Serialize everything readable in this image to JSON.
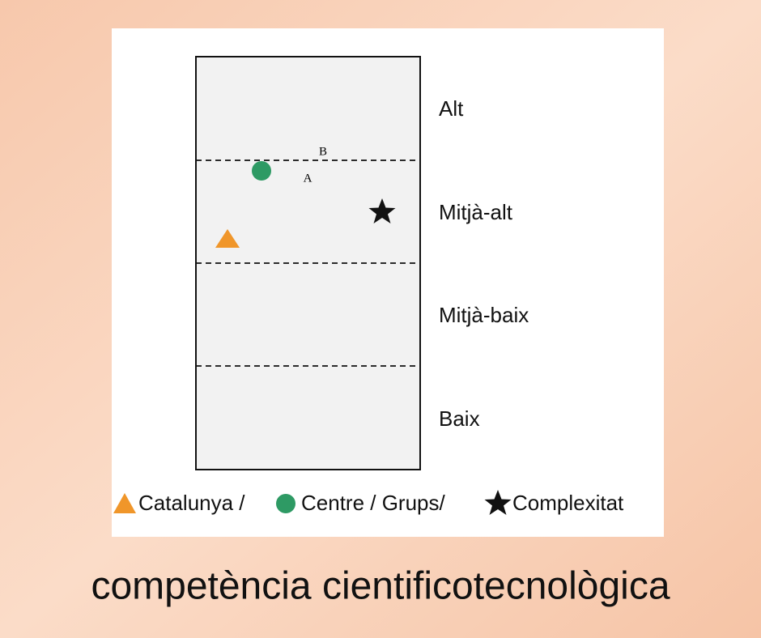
{
  "levels": [
    "Alt",
    "Mitjà-alt",
    "Mitjà-baix",
    "Baix"
  ],
  "markers": {
    "a": "A",
    "b": "B"
  },
  "legend": [
    "Catalunya /",
    "Centre / Grups/",
    "Complexitat"
  ],
  "caption": "competència cientificotecnològica"
}
